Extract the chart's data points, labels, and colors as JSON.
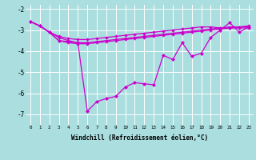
{
  "xlabel": "Windchill (Refroidissement éolien,°C)",
  "background_color": "#aadedf",
  "line_color": "#cc00cc",
  "grid_color": "#ffffff",
  "hours": [
    0,
    1,
    2,
    3,
    4,
    5,
    6,
    7,
    8,
    9,
    10,
    11,
    12,
    13,
    14,
    15,
    16,
    17,
    18,
    19,
    20,
    21,
    22,
    23
  ],
  "line_flat1": [
    -2.6,
    -2.8,
    -3.1,
    -3.3,
    -3.4,
    -3.45,
    -3.45,
    -3.4,
    -3.35,
    -3.3,
    -3.25,
    -3.2,
    -3.15,
    -3.1,
    -3.05,
    -3.0,
    -2.95,
    -2.9,
    -2.85,
    -2.85,
    -2.9,
    -2.85,
    -2.85,
    -2.85
  ],
  "line_flat2": [
    -2.6,
    -2.8,
    -3.1,
    -3.35,
    -3.5,
    -3.6,
    -3.6,
    -3.55,
    -3.5,
    -3.45,
    -3.4,
    -3.35,
    -3.3,
    -3.25,
    -3.2,
    -3.15,
    -3.1,
    -3.05,
    -3.0,
    -2.95,
    -2.9,
    -2.9,
    -2.9,
    -2.9
  ],
  "line_flat3": [
    -2.6,
    -2.8,
    -3.1,
    -3.5,
    -3.6,
    -3.65,
    -3.65,
    -3.6,
    -3.55,
    -3.5,
    -3.45,
    -3.4,
    -3.35,
    -3.3,
    -3.25,
    -3.2,
    -3.15,
    -3.1,
    -3.05,
    -3.0,
    -2.95,
    -2.9,
    -2.85,
    -2.8
  ],
  "line_zigzag": [
    -2.6,
    -2.8,
    -3.1,
    -3.5,
    -3.55,
    -3.6,
    -6.85,
    -6.4,
    -6.25,
    -6.15,
    -5.7,
    -5.5,
    -5.55,
    -5.6,
    -4.2,
    -4.4,
    -3.6,
    -4.25,
    -4.1,
    -3.35,
    -3.0,
    -2.65,
    -3.1,
    -2.85
  ],
  "ylim": [
    -7.5,
    -1.8
  ],
  "yticks": [
    -7,
    -6,
    -5,
    -4,
    -3,
    -2
  ],
  "xticks": [
    0,
    1,
    2,
    3,
    4,
    5,
    6,
    7,
    8,
    9,
    10,
    11,
    12,
    13,
    14,
    15,
    16,
    17,
    18,
    19,
    20,
    21,
    22,
    23
  ]
}
